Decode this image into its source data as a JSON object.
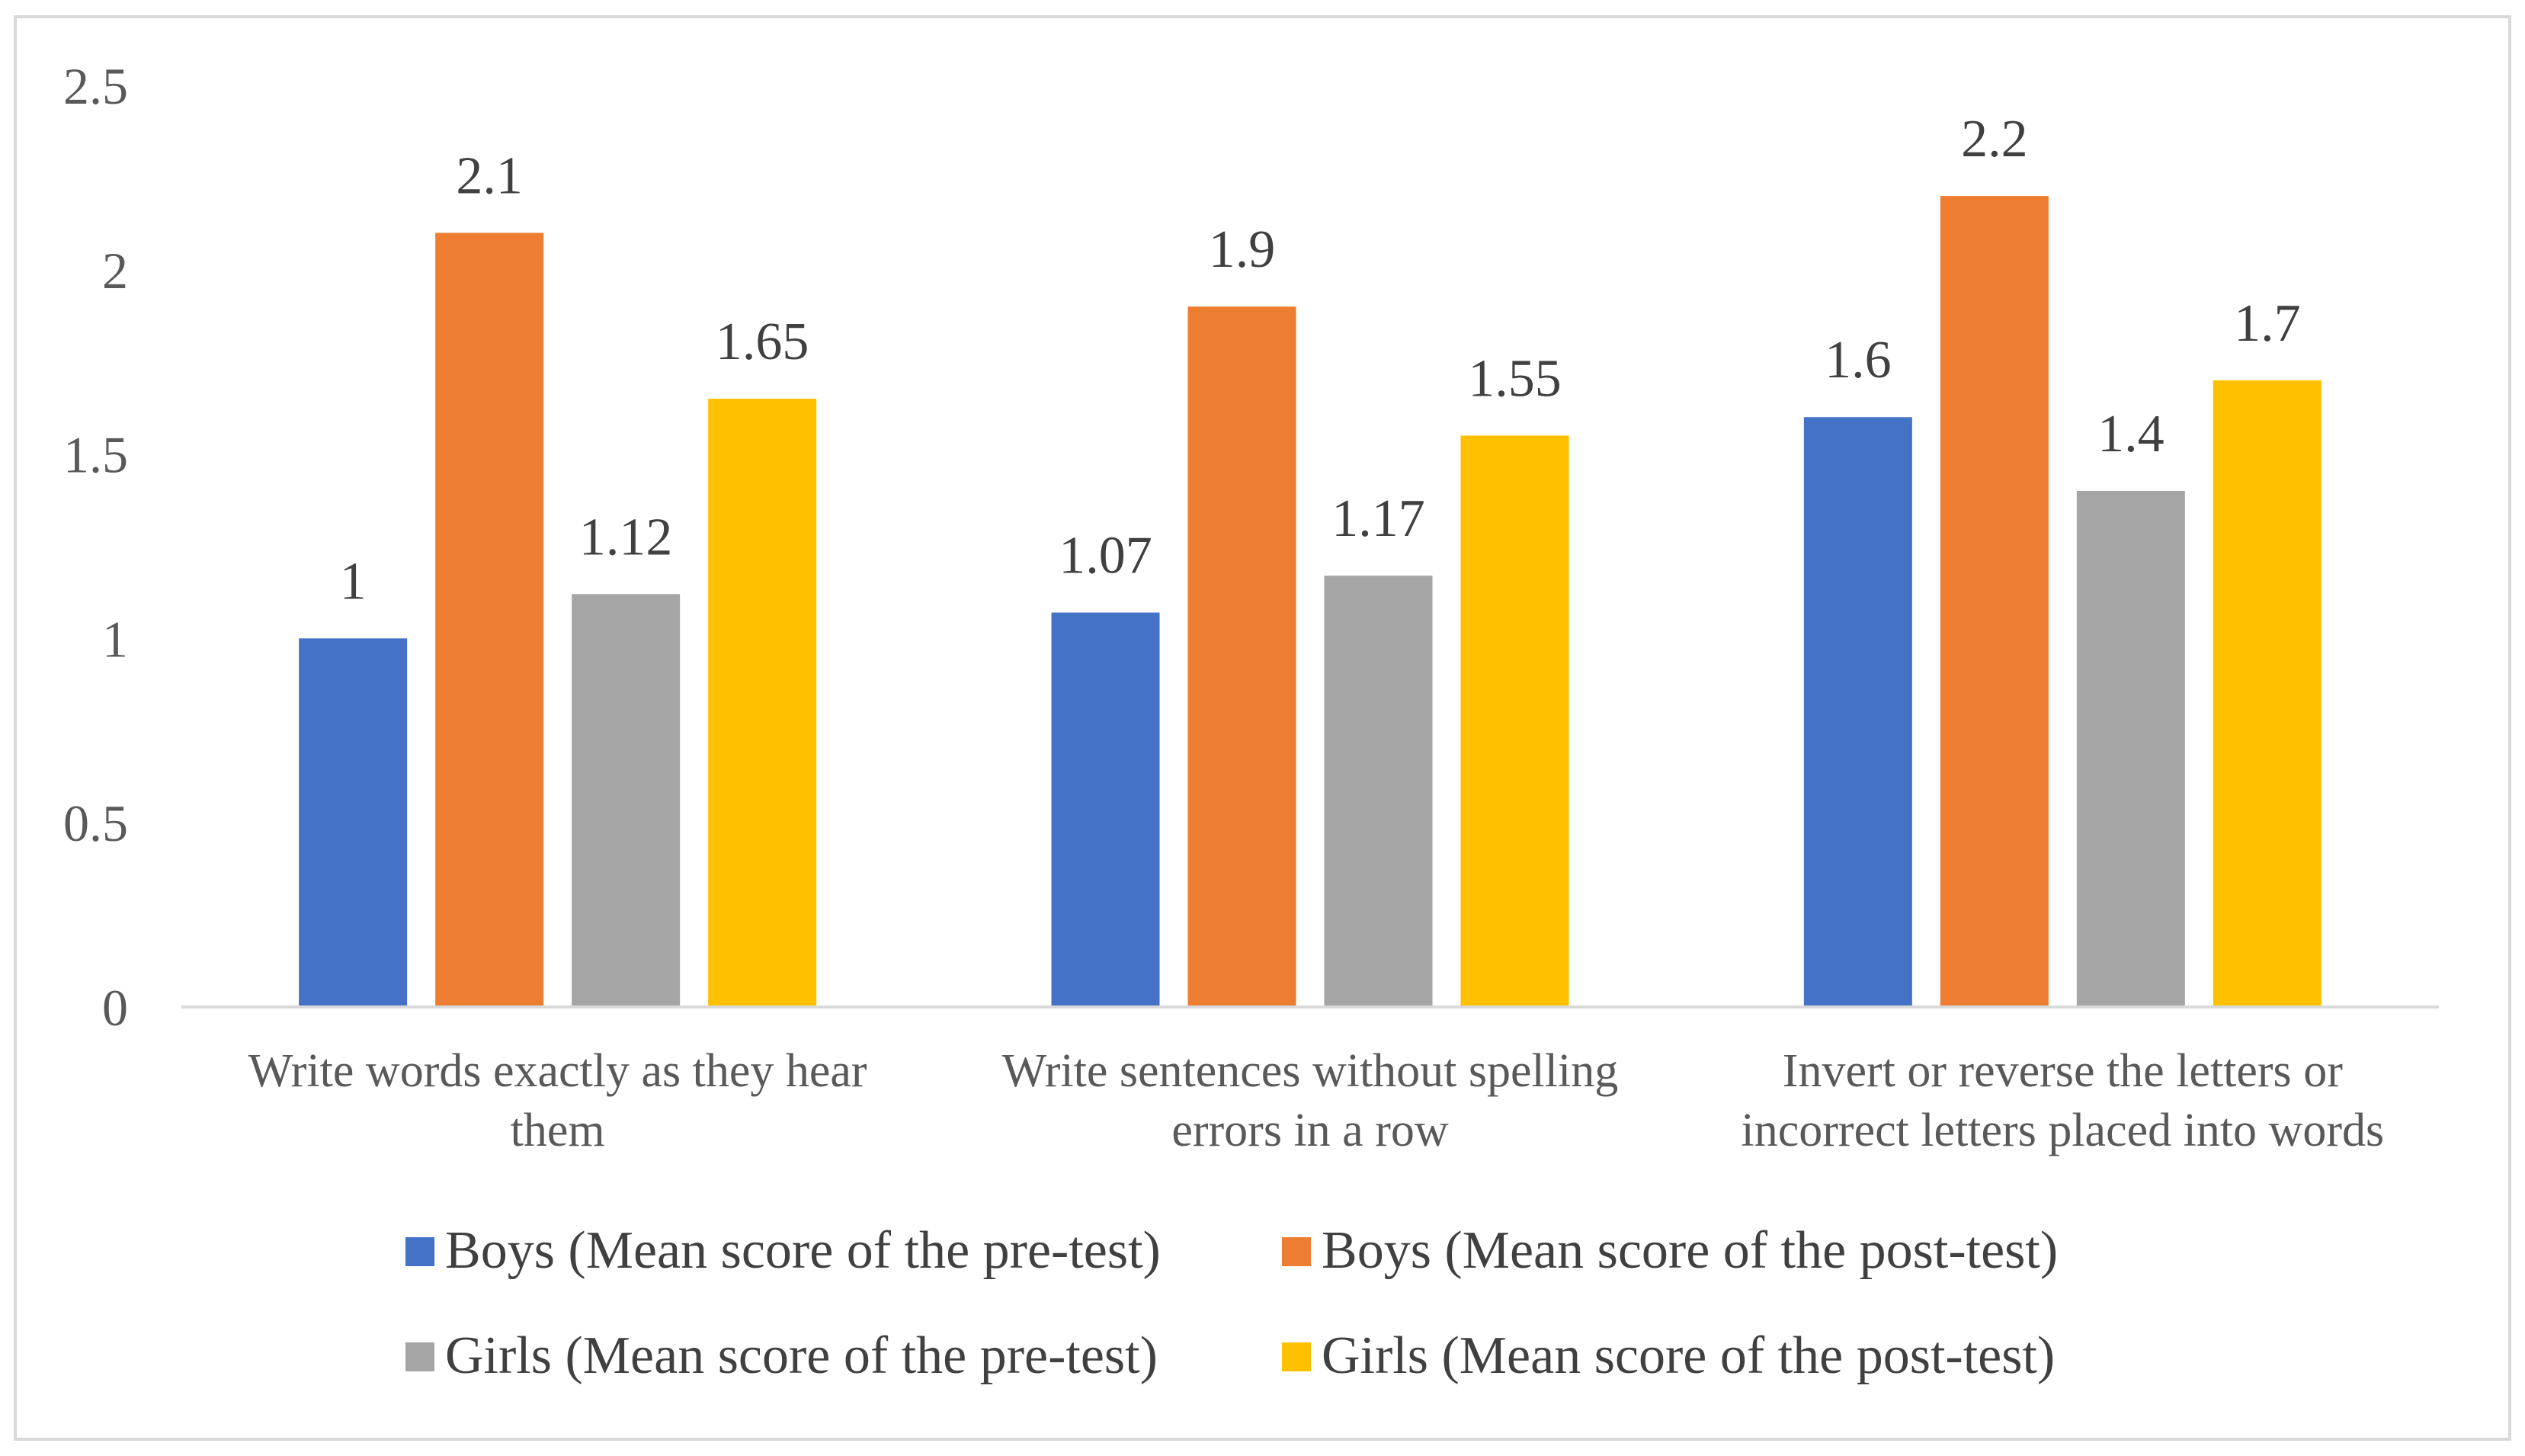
{
  "chart_data": {
    "type": "bar",
    "title": "",
    "xlabel": "",
    "ylabel": "",
    "ylim": [
      0,
      2.5
    ],
    "yticks": [
      0,
      0.5,
      1,
      1.5,
      2,
      2.5
    ],
    "ytick_labels": [
      "0",
      "0.5",
      "1",
      "1.5",
      "2",
      "2.5"
    ],
    "grid": false,
    "legend_position": "bottom",
    "categories": [
      [
        "Write words exactly as they hear",
        "them"
      ],
      [
        "Write sentences without spelling",
        "errors in a row"
      ],
      [
        "Invert or reverse the letters or",
        "incorrect letters placed into words"
      ]
    ],
    "series": [
      {
        "name": "Boys (Mean score of the pre-test)",
        "color": "#4472C4",
        "values": [
          1,
          1.07,
          1.6
        ],
        "labels": [
          "1",
          "1.07",
          "1.6"
        ]
      },
      {
        "name": "Boys (Mean score of the post-test)",
        "color": "#ED7D31",
        "values": [
          2.1,
          1.9,
          2.2
        ],
        "labels": [
          "2.1",
          "1.9",
          "2.2"
        ]
      },
      {
        "name": "Girls (Mean score of the pre-test)",
        "color": "#A5A5A5",
        "values": [
          1.12,
          1.17,
          1.4
        ],
        "labels": [
          "1.12",
          "1.17",
          "1.4"
        ]
      },
      {
        "name": "Girls (Mean score of the post-test)",
        "color": "#FFC000",
        "values": [
          1.65,
          1.55,
          1.7
        ],
        "labels": [
          "1.65",
          "1.55",
          "1.7"
        ]
      }
    ],
    "axis_color": "#d9d9d9"
  }
}
